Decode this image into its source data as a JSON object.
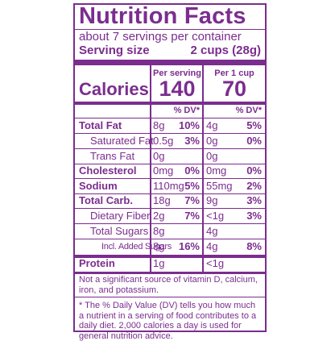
{
  "title": "Nutrition Facts",
  "servings": "about 7 servings per container",
  "serving_size": {
    "label": "Serving size",
    "value": "2 cups (28g)"
  },
  "calories": {
    "label": "Calories",
    "columns": [
      {
        "header": "Per serving",
        "value": "140"
      },
      {
        "header": "Per 1 cup",
        "value": "70"
      }
    ]
  },
  "dv_header": "% DV*",
  "rows": [
    {
      "name": "Total Fat",
      "bold": true,
      "serving": [
        "8g",
        "10%"
      ],
      "cup": [
        "4g",
        "5%"
      ]
    },
    {
      "name": "Saturated Fat",
      "indent": 1,
      "serving": [
        "0.5g",
        "3%"
      ],
      "cup": [
        "0g",
        "0%"
      ]
    },
    {
      "name": "Trans Fat",
      "indent": 1,
      "serving": [
        "0g"
      ],
      "cup": [
        "0g"
      ]
    },
    {
      "name": "Cholesterol",
      "bold": true,
      "serving": [
        "0mg",
        "0%"
      ],
      "cup": [
        "0mg",
        "0%"
      ]
    },
    {
      "name": "Sodium",
      "bold": true,
      "serving": [
        "110mg",
        "5%"
      ],
      "cup": [
        "55mg",
        "2%"
      ]
    },
    {
      "name": "Total Carb.",
      "bold": true,
      "serving": [
        "18g",
        "7%"
      ],
      "cup": [
        "9g",
        "3%"
      ]
    },
    {
      "name": "Dietary Fiber",
      "indent": 1,
      "serving": [
        "2g",
        "7%"
      ],
      "cup": [
        "<1g",
        "3%"
      ]
    },
    {
      "name": "Total Sugars",
      "indent": 1,
      "serving": [
        "8g"
      ],
      "cup": [
        "4g"
      ]
    },
    {
      "name": "Incl. Added Sugars",
      "indent": 2,
      "serving": [
        "8g",
        "16%"
      ],
      "cup": [
        "4g",
        "8%"
      ]
    },
    {
      "name": "Protein",
      "bold": true,
      "serving": [
        "1g"
      ],
      "cup": [
        "<1g"
      ]
    }
  ],
  "footnotes": [
    "Not a significant source of vitamin D, calcium, iron, and potassium.",
    "* The % Daily Value (DV) tells you how much a nutrient in a serving of food contributes to a daily diet. 2,000 calories a day is used for general nutrition advice."
  ]
}
